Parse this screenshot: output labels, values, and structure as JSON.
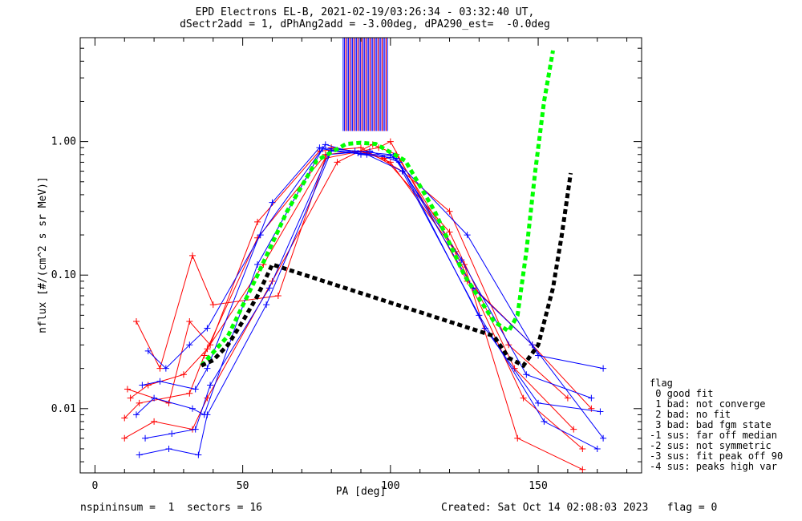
{
  "header": {
    "line1": "EPD Electrons EL-B, 2021-02-19/03:26:34 - 03:32:40 UT,",
    "line2": "dSectr2add = 1, dPhAng2add = -3.00deg, dPA290_est=  -0.0deg"
  },
  "footer": {
    "left": "nspininsum =  1  sectors = 16",
    "right": "Created: Sat Oct 14 02:08:03 2023   flag = 0"
  },
  "legend": {
    "title": "flag",
    "items": [
      " 0 good fit",
      " 1 bad: not converge",
      " 2 bad: no fit",
      " 3 bad: bad fgm state",
      "-1 sus: far off median",
      "-2 sus: not symmetric",
      "-3 sus: fit peak off 90",
      "-4 sus: peaks high var"
    ]
  },
  "chart_data": {
    "type": "line",
    "log_y": true,
    "xlabel": "PA [deg]",
    "ylabel": "nflux [#/(cm^2 s sr MeV)]",
    "xlim": [
      -5,
      185
    ],
    "ylim": [
      0.0033,
      6
    ],
    "x_ticks": [
      0,
      50,
      100,
      150
    ],
    "y_ticks": [
      {
        "value": 0.01,
        "label": "0.01"
      },
      {
        "value": 0.1,
        "label": "0.10"
      },
      {
        "value": 1.0,
        "label": "1.00"
      }
    ],
    "colors": {
      "red_series": "#ff0000",
      "blue_series": "#0000ff",
      "green_fit": "#00ff00",
      "black_fit": "#000000"
    },
    "vertical_markers": {
      "x_range": [
        84,
        99
      ],
      "y_range": [
        1.2,
        6
      ],
      "count": 34
    },
    "series": [
      {
        "color": "red",
        "pa": [
          10,
          15,
          32,
          37,
          55,
          78,
          90,
          98,
          120,
          142,
          162
        ],
        "values": [
          0.0085,
          0.011,
          0.013,
          0.025,
          0.19,
          0.8,
          0.85,
          0.75,
          0.21,
          0.02,
          0.007
        ]
      },
      {
        "color": "red",
        "pa": [
          12,
          18,
          30,
          38,
          57,
          80,
          92,
          100,
          122,
          145,
          165
        ],
        "values": [
          0.012,
          0.015,
          0.018,
          0.028,
          0.12,
          0.9,
          0.82,
          0.7,
          0.15,
          0.012,
          0.005
        ]
      },
      {
        "color": "red",
        "pa": [
          10,
          20,
          33,
          38,
          60,
          82,
          94,
          102,
          125,
          143,
          165
        ],
        "values": [
          0.006,
          0.008,
          0.007,
          0.012,
          0.09,
          0.7,
          0.95,
          0.8,
          0.12,
          0.006,
          0.0035
        ]
      },
      {
        "color": "red",
        "pa": [
          14,
          22,
          33,
          40,
          62,
          78,
          96,
          100,
          126,
          148,
          168
        ],
        "values": [
          0.045,
          0.02,
          0.14,
          0.06,
          0.07,
          0.75,
          0.9,
          1.0,
          0.09,
          0.03,
          0.01
        ]
      },
      {
        "color": "red",
        "pa": [
          11,
          25,
          32,
          39,
          55,
          76,
          90,
          104,
          120,
          140,
          160
        ],
        "values": [
          0.014,
          0.011,
          0.045,
          0.03,
          0.25,
          0.85,
          0.9,
          0.6,
          0.3,
          0.03,
          0.012
        ]
      },
      {
        "color": "blue",
        "pa": [
          16,
          22,
          34,
          38,
          60,
          76,
          88,
          100,
          126,
          150,
          172
        ],
        "values": [
          0.015,
          0.016,
          0.014,
          0.02,
          0.35,
          0.9,
          0.85,
          0.8,
          0.2,
          0.025,
          0.02
        ]
      },
      {
        "color": "blue",
        "pa": [
          15,
          25,
          35,
          38,
          58,
          80,
          92,
          104,
          130,
          152,
          170
        ],
        "values": [
          0.0045,
          0.005,
          0.0045,
          0.009,
          0.06,
          0.85,
          0.8,
          0.6,
          0.05,
          0.008,
          0.005
        ]
      },
      {
        "color": "blue",
        "pa": [
          18,
          24,
          32,
          38,
          56,
          78,
          90,
          102,
          128,
          148,
          172
        ],
        "values": [
          0.027,
          0.02,
          0.03,
          0.04,
          0.2,
          0.95,
          0.8,
          0.75,
          0.08,
          0.03,
          0.006
        ]
      },
      {
        "color": "blue",
        "pa": [
          14,
          20,
          33,
          37,
          55,
          77,
          89,
          101,
          124,
          146,
          168
        ],
        "values": [
          0.009,
          0.012,
          0.01,
          0.009,
          0.12,
          0.88,
          0.82,
          0.78,
          0.13,
          0.018,
          0.012
        ]
      },
      {
        "color": "blue",
        "pa": [
          17,
          26,
          34,
          39,
          59,
          79,
          93,
          103,
          132,
          150,
          171
        ],
        "values": [
          0.006,
          0.0065,
          0.007,
          0.015,
          0.08,
          0.8,
          0.85,
          0.7,
          0.04,
          0.011,
          0.0095
        ]
      }
    ],
    "fits": [
      {
        "color": "green",
        "style": "dashed",
        "pa": [
          36,
          45,
          55,
          65,
          75,
          85,
          90,
          95,
          105,
          115,
          125,
          135,
          140,
          143,
          146,
          149,
          152,
          155
        ],
        "values": [
          0.021,
          0.035,
          0.1,
          0.3,
          0.72,
          0.96,
          0.98,
          0.96,
          0.72,
          0.3,
          0.1,
          0.045,
          0.038,
          0.05,
          0.15,
          0.6,
          2.0,
          4.8
        ]
      },
      {
        "color": "black",
        "style": "dashed",
        "pa": [
          36,
          40,
          45,
          50,
          55,
          60,
          135,
          140,
          145,
          150,
          155,
          158,
          161
        ],
        "values": [
          0.021,
          0.023,
          0.03,
          0.045,
          0.07,
          0.12,
          0.035,
          0.024,
          0.021,
          0.03,
          0.08,
          0.2,
          0.58
        ]
      }
    ]
  }
}
